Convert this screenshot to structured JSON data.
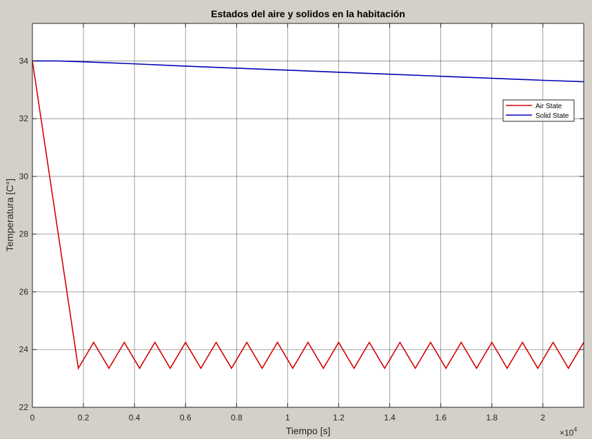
{
  "chart_data": {
    "type": "line",
    "title": "Estados del aire y solidos en la habitación",
    "xlabel": "Tiempo [s]",
    "ylabel": "Temperatura [C°]",
    "x_exponent_label": "×10",
    "x_exponent_power": "4",
    "xlim": [
      0,
      21600
    ],
    "ylim": [
      22,
      35.3
    ],
    "xticks": [
      0,
      2000,
      4000,
      6000,
      8000,
      10000,
      12000,
      14000,
      16000,
      18000,
      20000
    ],
    "xtick_labels": [
      "0",
      "0.2",
      "0.4",
      "0.6",
      "0.8",
      "1",
      "1.2",
      "1.4",
      "1.6",
      "1.8",
      "2"
    ],
    "yticks": [
      22,
      24,
      26,
      28,
      30,
      32,
      34
    ],
    "ytick_labels": [
      "22",
      "24",
      "26",
      "28",
      "30",
      "32",
      "34"
    ],
    "grid": true,
    "legend_position": "upper-right",
    "series": [
      {
        "name": "Air State",
        "color": "#d40000",
        "x": [
          0,
          1800,
          2400,
          3000,
          3600,
          4200,
          4800,
          5400,
          6000,
          6600,
          7200,
          7800,
          8400,
          9000,
          9600,
          10200,
          10800,
          11400,
          12000,
          12600,
          13200,
          13800,
          14400,
          15000,
          15600,
          16200,
          16800,
          17400,
          18000,
          18600,
          19200,
          19800,
          20400,
          21000,
          21600
        ],
        "y": [
          34.0,
          23.35,
          24.25,
          23.35,
          24.25,
          23.35,
          24.25,
          23.35,
          24.25,
          23.35,
          24.25,
          23.35,
          24.25,
          23.35,
          24.25,
          23.35,
          24.25,
          23.35,
          24.25,
          23.35,
          24.25,
          23.35,
          24.25,
          23.35,
          24.25,
          23.35,
          24.25,
          23.35,
          24.25,
          23.35,
          24.25,
          23.35,
          24.25,
          23.35,
          24.25
        ]
      },
      {
        "name": "Solid State",
        "color": "#0000b4",
        "x": [
          0,
          1000,
          2000,
          4000,
          6000,
          8000,
          10000,
          12000,
          14000,
          16000,
          18000,
          20000,
          21600
        ],
        "y": [
          34.0,
          34.0,
          33.97,
          33.9,
          33.82,
          33.75,
          33.68,
          33.61,
          33.54,
          33.47,
          33.4,
          33.33,
          33.28
        ]
      }
    ]
  }
}
